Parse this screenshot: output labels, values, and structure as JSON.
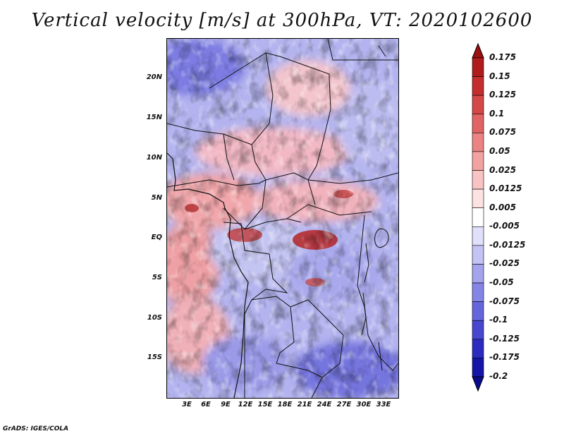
{
  "title": "Vertical velocity [m/s] at 300hPa, VT: 2020102600",
  "credit": "GrADS: IGES/COLA",
  "lat_labels": [
    "20N",
    "15N",
    "10N",
    "5N",
    "EQ",
    "5S",
    "10S",
    "15S"
  ],
  "lon_labels": [
    "3E",
    "6E",
    "9E",
    "12E",
    "15E",
    "18E",
    "21E",
    "24E",
    "27E",
    "30E",
    "33E"
  ],
  "colorbar": {
    "labels": [
      "0.175",
      "0.15",
      "0.125",
      "0.1",
      "0.075",
      "0.05",
      "0.025",
      "0.0125",
      "0.005",
      "-0.005",
      "-0.0125",
      "-0.025",
      "-0.05",
      "-0.075",
      "-0.1",
      "-0.125",
      "-0.175",
      "-0.2"
    ],
    "colors": [
      "#9b1010",
      "#b01c1c",
      "#c42e2e",
      "#d44848",
      "#e06464",
      "#eb8383",
      "#f3a2a2",
      "#f9c3c3",
      "#fde2e2",
      "#ffffff",
      "#e0e0fa",
      "#c3c3f4",
      "#a4a4ee",
      "#8585e6",
      "#6666dc",
      "#4747d0",
      "#2b2bc0",
      "#1515a8",
      "#0a0a8c"
    ]
  }
}
